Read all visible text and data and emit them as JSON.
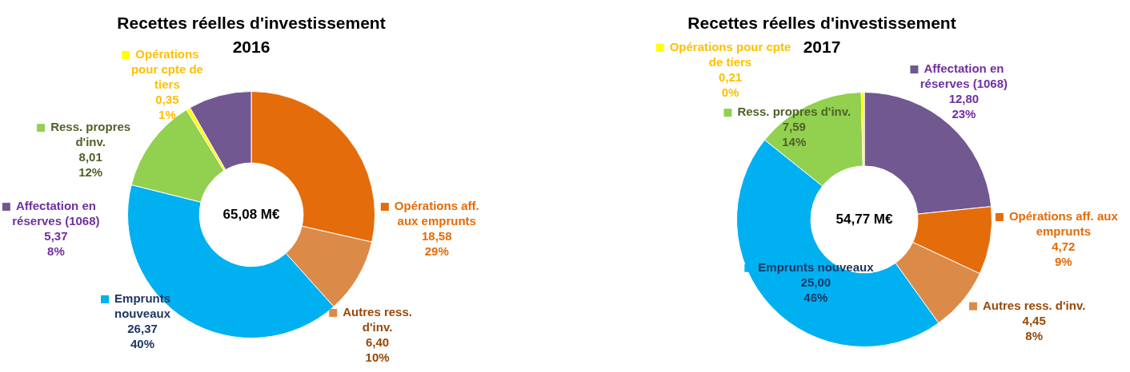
{
  "chart_data": [
    {
      "type": "donut",
      "title": "Recettes réelles d'investissement 2016",
      "categories": [
        "Opérations aff. aux emprunts",
        "Autres ress. d'inv.",
        "Emprunts nouveaux",
        "Ress. propres d'inv.",
        "Opérations pour cpte de tiers",
        "Affectation en réserves (1068)"
      ],
      "values": [
        18.58,
        6.4,
        26.37,
        8.01,
        0.35,
        5.37
      ],
      "colors": [
        "#e46c0a",
        "#dc8a48",
        "#00b0f0",
        "#92d050",
        "#ffff00",
        "#725891"
      ],
      "value_labels": [
        "18,58\n29%",
        "6,40\n10%",
        "26,37\n40%",
        "8,01\n12%",
        "0,35\n1%",
        "5,37\n8%"
      ],
      "annotations": [
        "65,08 M€"
      ],
      "legend": "right"
    },
    {
      "type": "donut",
      "title": "Recettes réelles d'investissement 2017",
      "categories": [
        "Affectation en réserves (1068)",
        "Opérations aff. aux emprunts",
        "Autres ress. d'inv.",
        "Emprunts nouveaux",
        "Ress. propres d'inv.",
        "Opérations pour cpte de tiers"
      ],
      "values": [
        12.8,
        4.72,
        4.45,
        25.0,
        7.59,
        0.21
      ],
      "colors": [
        "#725891",
        "#e46c0a",
        "#dc8a48",
        "#00b0f0",
        "#92d050",
        "#ffff00"
      ],
      "value_labels": [
        "12,80\n23%",
        "4,72\n9%",
        "4,45\n8%",
        "25,00\n46%",
        "7,59\n14%",
        "0,21\n0%"
      ],
      "annotations": [
        "54,77 M€"
      ],
      "legend": "right"
    }
  ]
}
